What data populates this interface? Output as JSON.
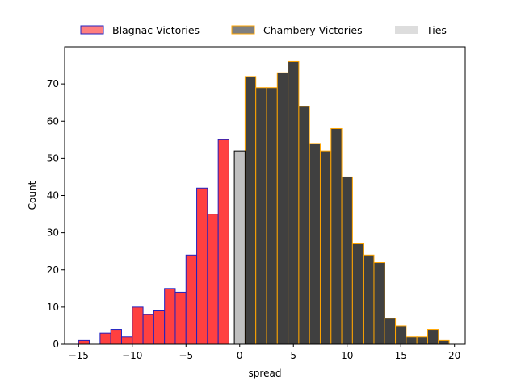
{
  "chart_data": {
    "type": "bar",
    "title": "",
    "xlabel": "spread",
    "ylabel": "Count",
    "xlim": [
      -16.3,
      21.0
    ],
    "ylim": [
      0,
      80
    ],
    "xticks": [
      -15,
      -10,
      -5,
      0,
      5,
      10,
      15,
      20
    ],
    "yticks": [
      0,
      10,
      20,
      30,
      40,
      50,
      60,
      70
    ],
    "bin_width": 1,
    "grid": false,
    "legend_position": "top-center-outside",
    "series": [
      {
        "name": "Blagnac Victories",
        "fill": "#ff4040",
        "legend_fill": "#ff7f7f",
        "edge": "#2020c0",
        "bins": [
          {
            "x": -14.5,
            "count": 1
          },
          {
            "x": -12.5,
            "count": 3
          },
          {
            "x": -11.5,
            "count": 4
          },
          {
            "x": -10.5,
            "count": 2
          },
          {
            "x": -9.5,
            "count": 10
          },
          {
            "x": -8.5,
            "count": 8
          },
          {
            "x": -7.5,
            "count": 9
          },
          {
            "x": -6.5,
            "count": 15
          },
          {
            "x": -5.5,
            "count": 14
          },
          {
            "x": -4.5,
            "count": 24
          },
          {
            "x": -3.5,
            "count": 42
          },
          {
            "x": -2.5,
            "count": 35
          },
          {
            "x": -1.5,
            "count": 55
          }
        ]
      },
      {
        "name": "Chambery Victories",
        "fill": "#404040",
        "legend_fill": "#7f7f7f",
        "edge": "#ffa500",
        "bins": [
          {
            "x": 1.0,
            "count": 72
          },
          {
            "x": 2.0,
            "count": 69
          },
          {
            "x": 3.0,
            "count": 69
          },
          {
            "x": 4.0,
            "count": 73
          },
          {
            "x": 5.0,
            "count": 76
          },
          {
            "x": 6.0,
            "count": 64
          },
          {
            "x": 7.0,
            "count": 54
          },
          {
            "x": 8.0,
            "count": 52
          },
          {
            "x": 9.0,
            "count": 58
          },
          {
            "x": 10.0,
            "count": 45
          },
          {
            "x": 11.0,
            "count": 27
          },
          {
            "x": 12.0,
            "count": 24
          },
          {
            "x": 13.0,
            "count": 22
          },
          {
            "x": 14.0,
            "count": 7
          },
          {
            "x": 15.0,
            "count": 5
          },
          {
            "x": 16.0,
            "count": 2
          },
          {
            "x": 17.0,
            "count": 2
          },
          {
            "x": 18.0,
            "count": 4
          },
          {
            "x": 19.0,
            "count": 1
          }
        ]
      },
      {
        "name": "Ties",
        "fill": "#c0c0c0",
        "legend_fill": "#dddddd",
        "edge": "#000000",
        "bins": [
          {
            "x": 0.0,
            "count": 52
          }
        ]
      }
    ]
  }
}
